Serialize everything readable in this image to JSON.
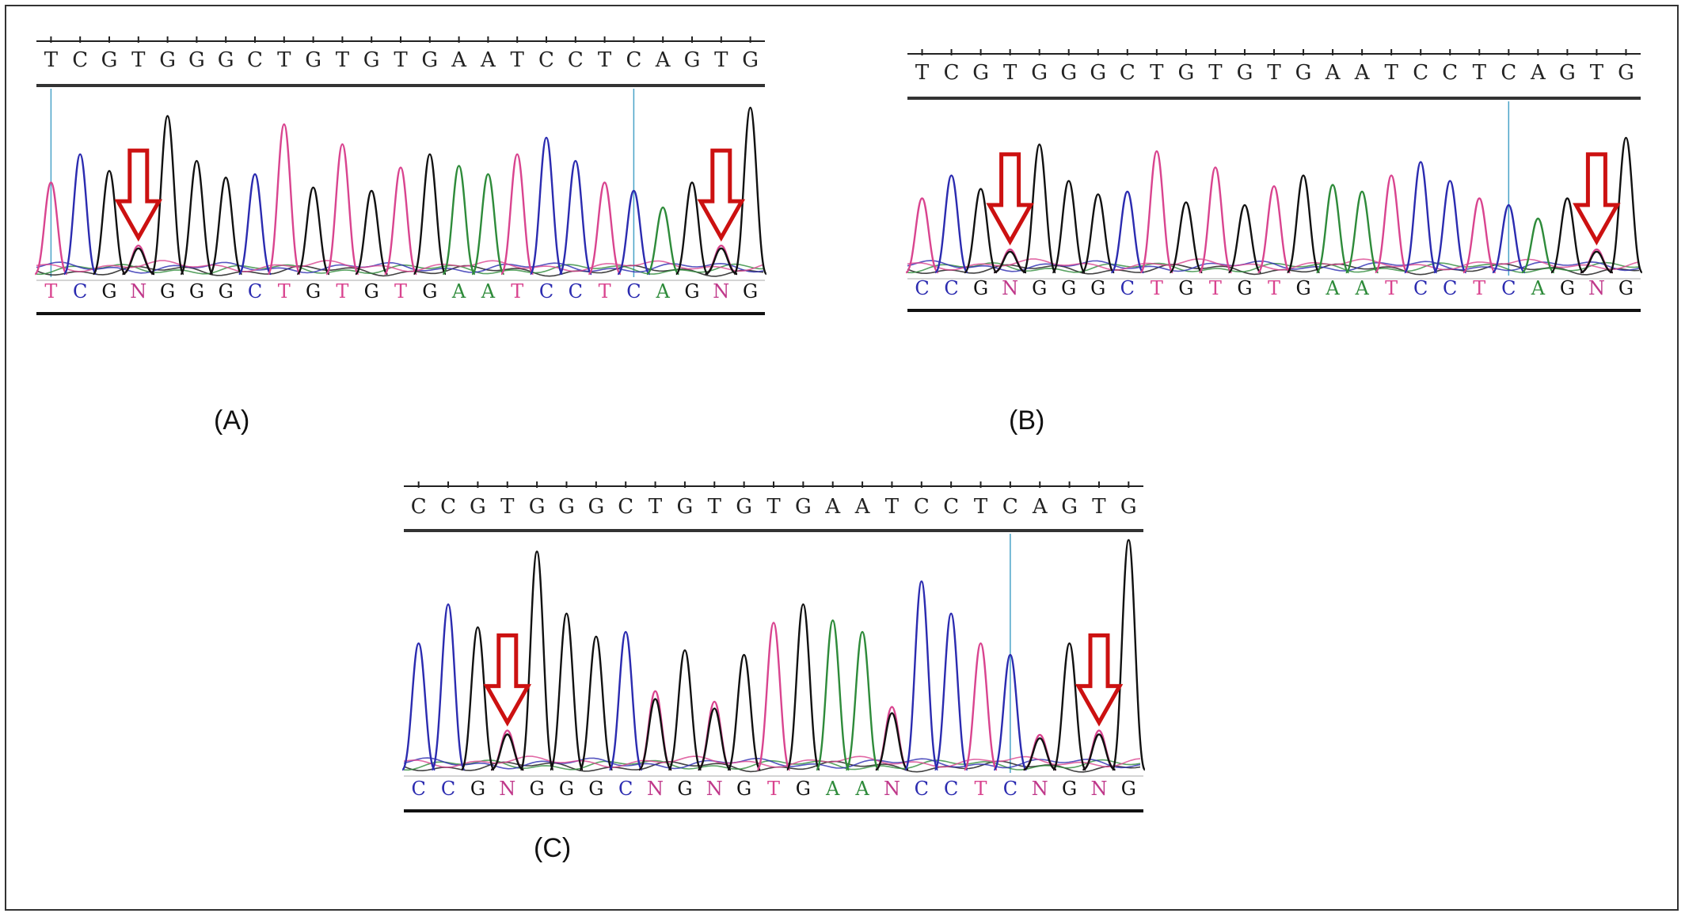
{
  "figure": {
    "panels": [
      {
        "id": "A",
        "label": "(A)",
        "reference": [
          "T",
          "C",
          "G",
          "T",
          "G",
          "G",
          "G",
          "C",
          "T",
          "G",
          "T",
          "G",
          "T",
          "G",
          "A",
          "A",
          "T",
          "C",
          "C",
          "T",
          "C",
          "A",
          "G",
          "T",
          "G"
        ],
        "called": [
          "T",
          "C",
          "G",
          "N",
          "G",
          "G",
          "G",
          "C",
          "T",
          "G",
          "T",
          "G",
          "T",
          "G",
          "A",
          "A",
          "T",
          "C",
          "C",
          "T",
          "C",
          "A",
          "G",
          "N",
          "G"
        ],
        "arrow_bases": [
          3,
          23
        ],
        "marker_bases": [
          0,
          20
        ]
      },
      {
        "id": "B",
        "label": "(B)",
        "reference": [
          "T",
          "C",
          "G",
          "T",
          "G",
          "G",
          "G",
          "C",
          "T",
          "G",
          "T",
          "G",
          "T",
          "G",
          "A",
          "A",
          "T",
          "C",
          "C",
          "T",
          "C",
          "A",
          "G",
          "T",
          "G"
        ],
        "called": [
          "C",
          "C",
          "G",
          "N",
          "G",
          "G",
          "G",
          "C",
          "T",
          "G",
          "T",
          "G",
          "T",
          "G",
          "A",
          "A",
          "T",
          "C",
          "C",
          "T",
          "C",
          "A",
          "G",
          "N",
          "G"
        ],
        "arrow_bases": [
          3,
          23
        ],
        "marker_bases": [
          20
        ]
      },
      {
        "id": "C",
        "label": "(C)",
        "reference": [
          "C",
          "C",
          "G",
          "T",
          "G",
          "G",
          "G",
          "C",
          "T",
          "G",
          "T",
          "G",
          "T",
          "G",
          "A",
          "A",
          "T",
          "C",
          "C",
          "T",
          "C",
          "A",
          "G",
          "T",
          "G"
        ],
        "called": [
          "C",
          "C",
          "G",
          "N",
          "G",
          "G",
          "G",
          "C",
          "N",
          "G",
          "N",
          "G",
          "T",
          "G",
          "A",
          "A",
          "N",
          "C",
          "C",
          "T",
          "C",
          "N",
          "G",
          "N",
          "G"
        ],
        "arrow_bases": [
          3,
          23
        ],
        "marker_bases": [
          20
        ]
      }
    ],
    "colors": {
      "A": "#2e8b3a",
      "C": "#2b2bb0",
      "G": "#111111",
      "T": "#d9448f",
      "N": "#c0388a",
      "arrow": "#cc1111",
      "marker": "#4aa3c8",
      "ruler": "#222222"
    }
  }
}
